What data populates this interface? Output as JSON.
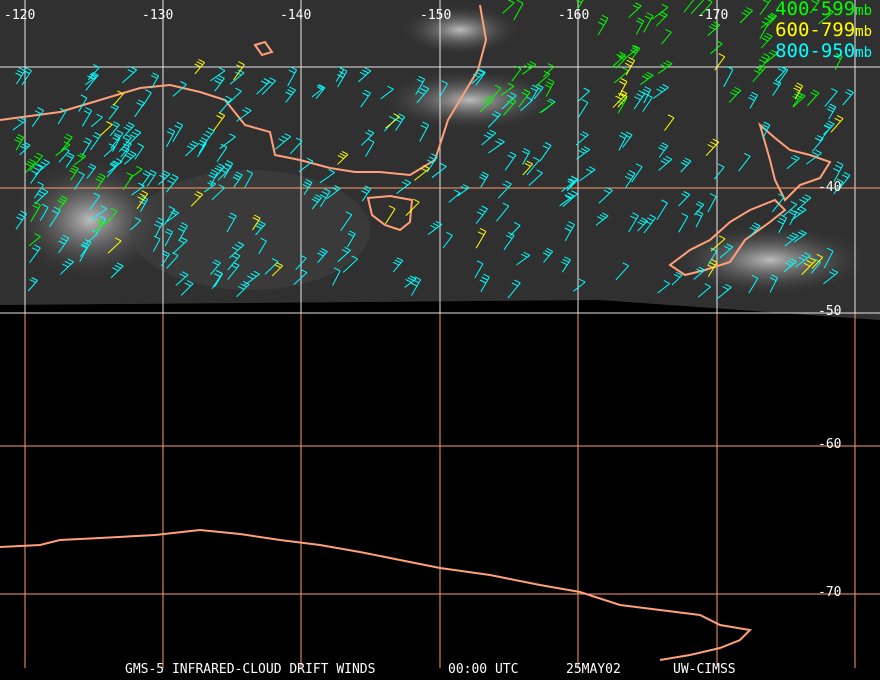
{
  "map": {
    "longitude_labels": [
      "-120",
      "-130",
      "-140",
      "-150",
      "-160",
      "-170"
    ],
    "latitude_labels": [
      "-40",
      "-50",
      "-60",
      "-70"
    ],
    "colors": {
      "grid_upper": "#e6e6e6",
      "grid_lower": "#ff9a6a",
      "coast": "#ffa07a",
      "background": "#000000",
      "cloud": "#8a8a8a"
    }
  },
  "legend": [
    {
      "range": "400-599",
      "unit": "mb",
      "color": "#00ff00"
    },
    {
      "range": "600-799",
      "unit": "mb",
      "color": "#ffff00"
    },
    {
      "range": "800-950",
      "unit": "mb",
      "color": "#00ffff"
    }
  ],
  "footer": {
    "product": "GMS-5 INFRARED-CLOUD DRIFT WINDS",
    "time": "00:00 UTC",
    "date": "25MAY02",
    "source": "UW-CIMSS"
  }
}
